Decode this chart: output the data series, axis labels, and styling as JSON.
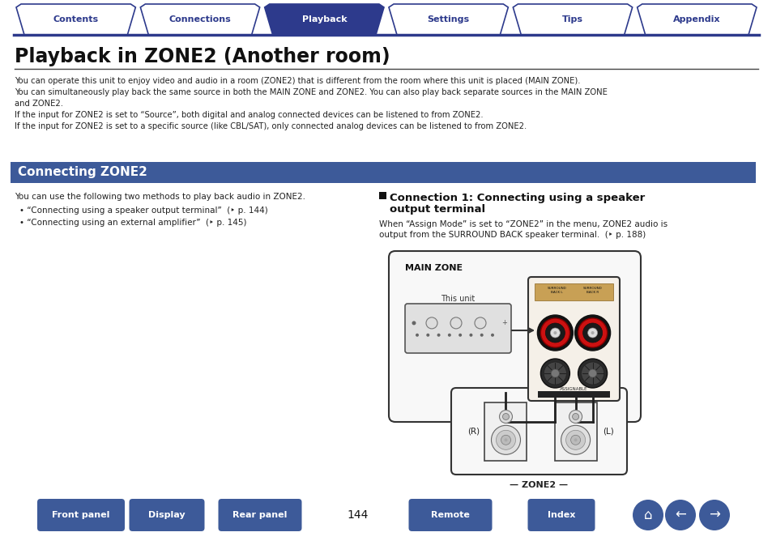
{
  "bg_color": "#ffffff",
  "tab_labels": [
    "Contents",
    "Connections",
    "Playback",
    "Settings",
    "Tips",
    "Appendix"
  ],
  "tab_active": 2,
  "tab_color_active": "#2d3a8c",
  "tab_color_inactive": "#ffffff",
  "tab_border_color": "#2d3a8c",
  "tab_text_color_active": "#ffffff",
  "tab_text_color_inactive": "#2d3a8c",
  "title": "Playback in ZONE2 (Another room)",
  "body_text_lines": [
    "You can operate this unit to enjoy video and audio in a room (ZONE2) that is different from the room where this unit is placed (MAIN ZONE).",
    "You can simultaneously play back the same source in both the MAIN ZONE and ZONE2. You can also play back separate sources in the MAIN ZONE",
    "and ZONE2.",
    "If the input for ZONE2 is set to “Source”, both digital and analog connected devices can be listened to from ZONE2.",
    "If the input for ZONE2 is set to a specific source (like CBL/SAT), only connected analog devices can be listened to from ZONE2."
  ],
  "section_bg": "#3d5a99",
  "section_title": "Connecting ZONE2",
  "section_text_color": "#ffffff",
  "left_text_header": "You can use the following two methods to play back audio in ZONE2.",
  "left_bullets": [
    "“Connecting using a speaker output terminal”  (‣ p. 144)",
    "“Connecting using an external amplifier”  (‣ p. 145)"
  ],
  "right_title_line1": "Connection 1: Connecting using a speaker",
  "right_title_line2": "output terminal",
  "right_body_line1": "When “Assign Mode” is set to “ZONE2” in the menu, ZONE2 audio is",
  "right_body_line2": "output from the SURROUND BACK speaker terminal.  (‣ p. 188)",
  "bottom_buttons": [
    "Front panel",
    "Display",
    "Rear panel",
    "Remote",
    "Index"
  ],
  "page_number": "144",
  "button_color": "#3d5a99",
  "button_text_color": "#ffffff",
  "line_color": "#2d3a8c",
  "diagram": {
    "mainzone_label": "MAIN ZONE",
    "thisunit_label": "This unit",
    "assignable_label": "ASSIGNABLE",
    "zone2_label": "ZONE2",
    "R_label": "(R)",
    "L_label": "(L)"
  }
}
